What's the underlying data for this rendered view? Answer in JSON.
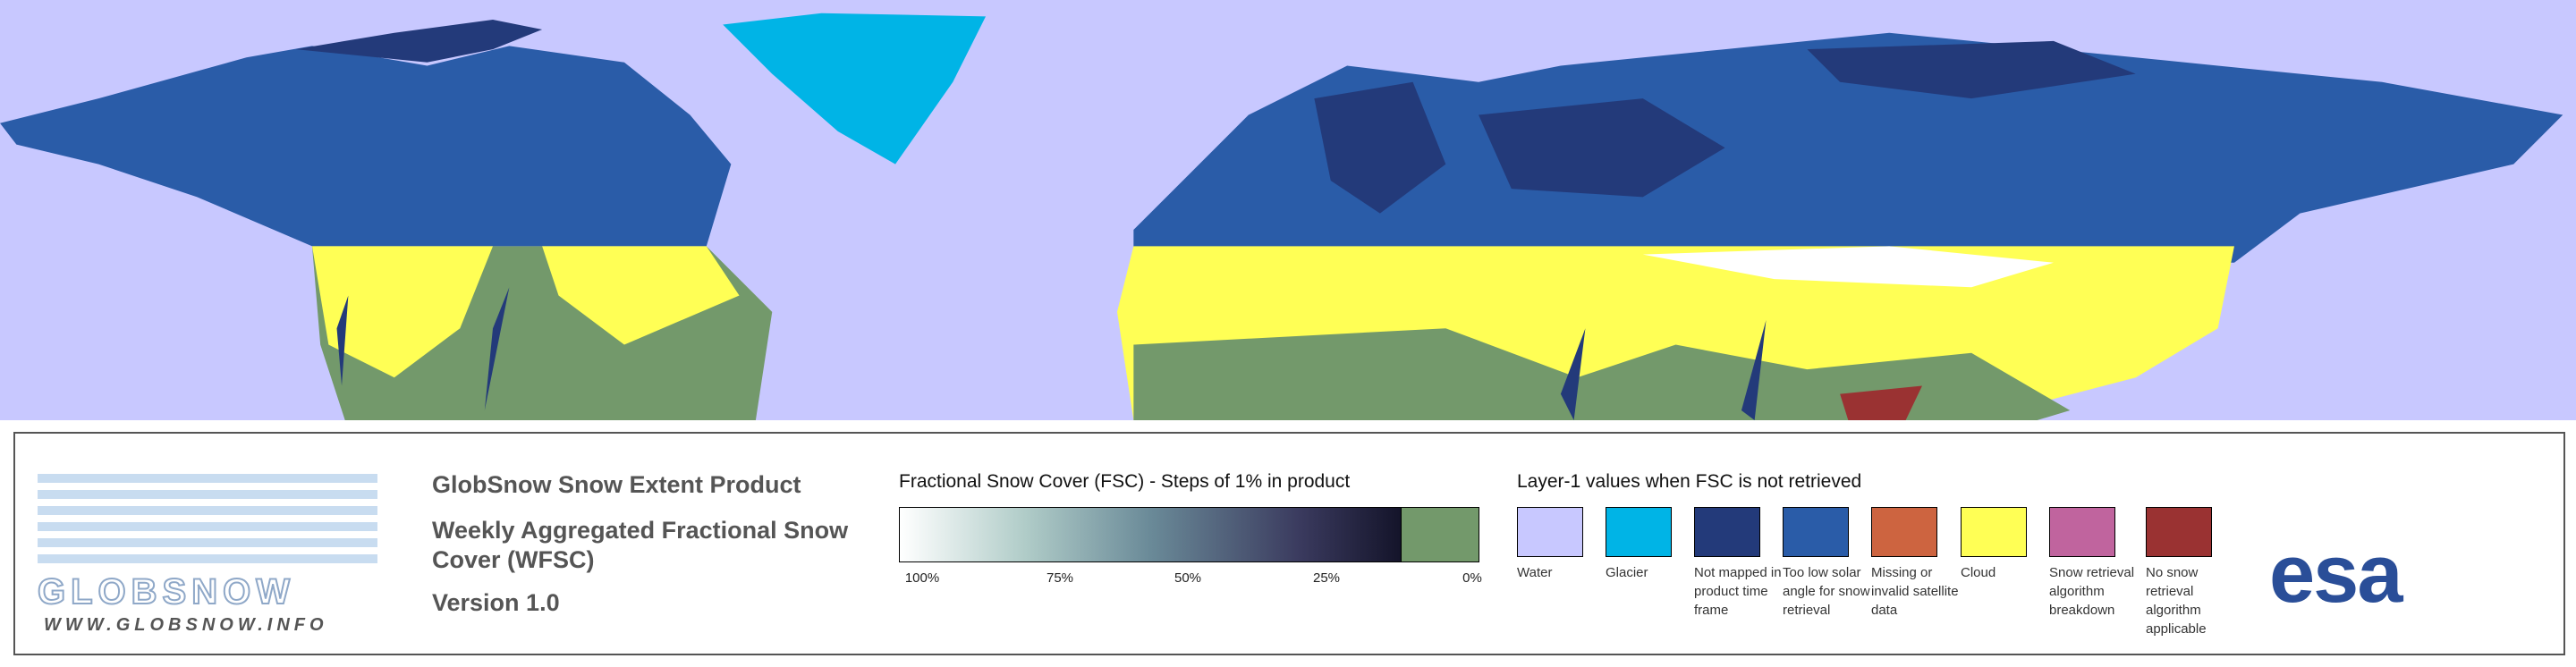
{
  "logo": {
    "name": "GLOBSNOW",
    "url": "WWW.GLOBSNOW.INFO"
  },
  "product": {
    "title": "GlobSnow Snow Extent Product",
    "subtitle": "Weekly Aggregated Fractional Snow Cover (WFSC)",
    "version": "Version 1.0"
  },
  "fsc_legend": {
    "title": "Fractional Snow Cover (FSC) - Steps of 1% in product",
    "ticks": [
      "100%",
      "75%",
      "50%",
      "25%",
      "0%"
    ]
  },
  "layer1_legend": {
    "title": "Layer-1 values when FSC is not retrieved",
    "classes": [
      {
        "label": "Water",
        "color": "#c8c8ff"
      },
      {
        "label": "Glacier",
        "color": "#00b4e6"
      },
      {
        "label": "Not mapped in product time frame",
        "color": "#233a7a"
      },
      {
        "label": "Too low solar angle for snow retrieval",
        "color": "#2a5ca8"
      },
      {
        "label": "Missing or invalid satellite data",
        "color": "#cd6440"
      },
      {
        "label": "Cloud",
        "color": "#ffff55"
      },
      {
        "label": "Snow retrieval algorithm breakdown",
        "color": "#c0649e"
      },
      {
        "label": "No snow retrieval algorithm applicable",
        "color": "#9a3232"
      }
    ]
  },
  "agency": "esa"
}
